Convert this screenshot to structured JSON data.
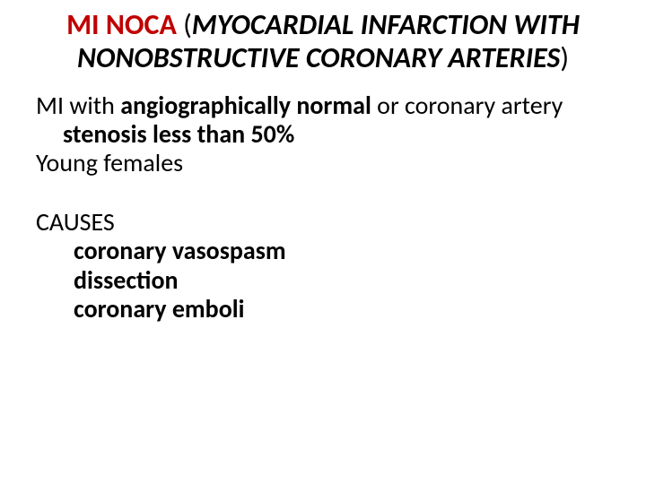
{
  "title": {
    "acronym": "MI NOCA",
    "open_paren": " (",
    "expansion": "MYOCARDIAL INFARCTION WITH NONOBSTRUCTIVE CORONARY ARTERIES",
    "close_paren": ")"
  },
  "definition": {
    "pre": "MI with ",
    "bold1": "angiographically normal",
    "mid": " or coronary artery ",
    "bold2": "stenosis less than 50%"
  },
  "population": "Young females",
  "causes": {
    "heading": "CAUSES",
    "items": [
      "coronary vasospasm",
      "dissection",
      "coronary emboli"
    ]
  },
  "colors": {
    "accent": "#c00000",
    "text": "#000000",
    "background": "#ffffff"
  },
  "typography": {
    "title_fontsize": 32,
    "body_fontsize": 28,
    "font_family": "Calibri"
  }
}
